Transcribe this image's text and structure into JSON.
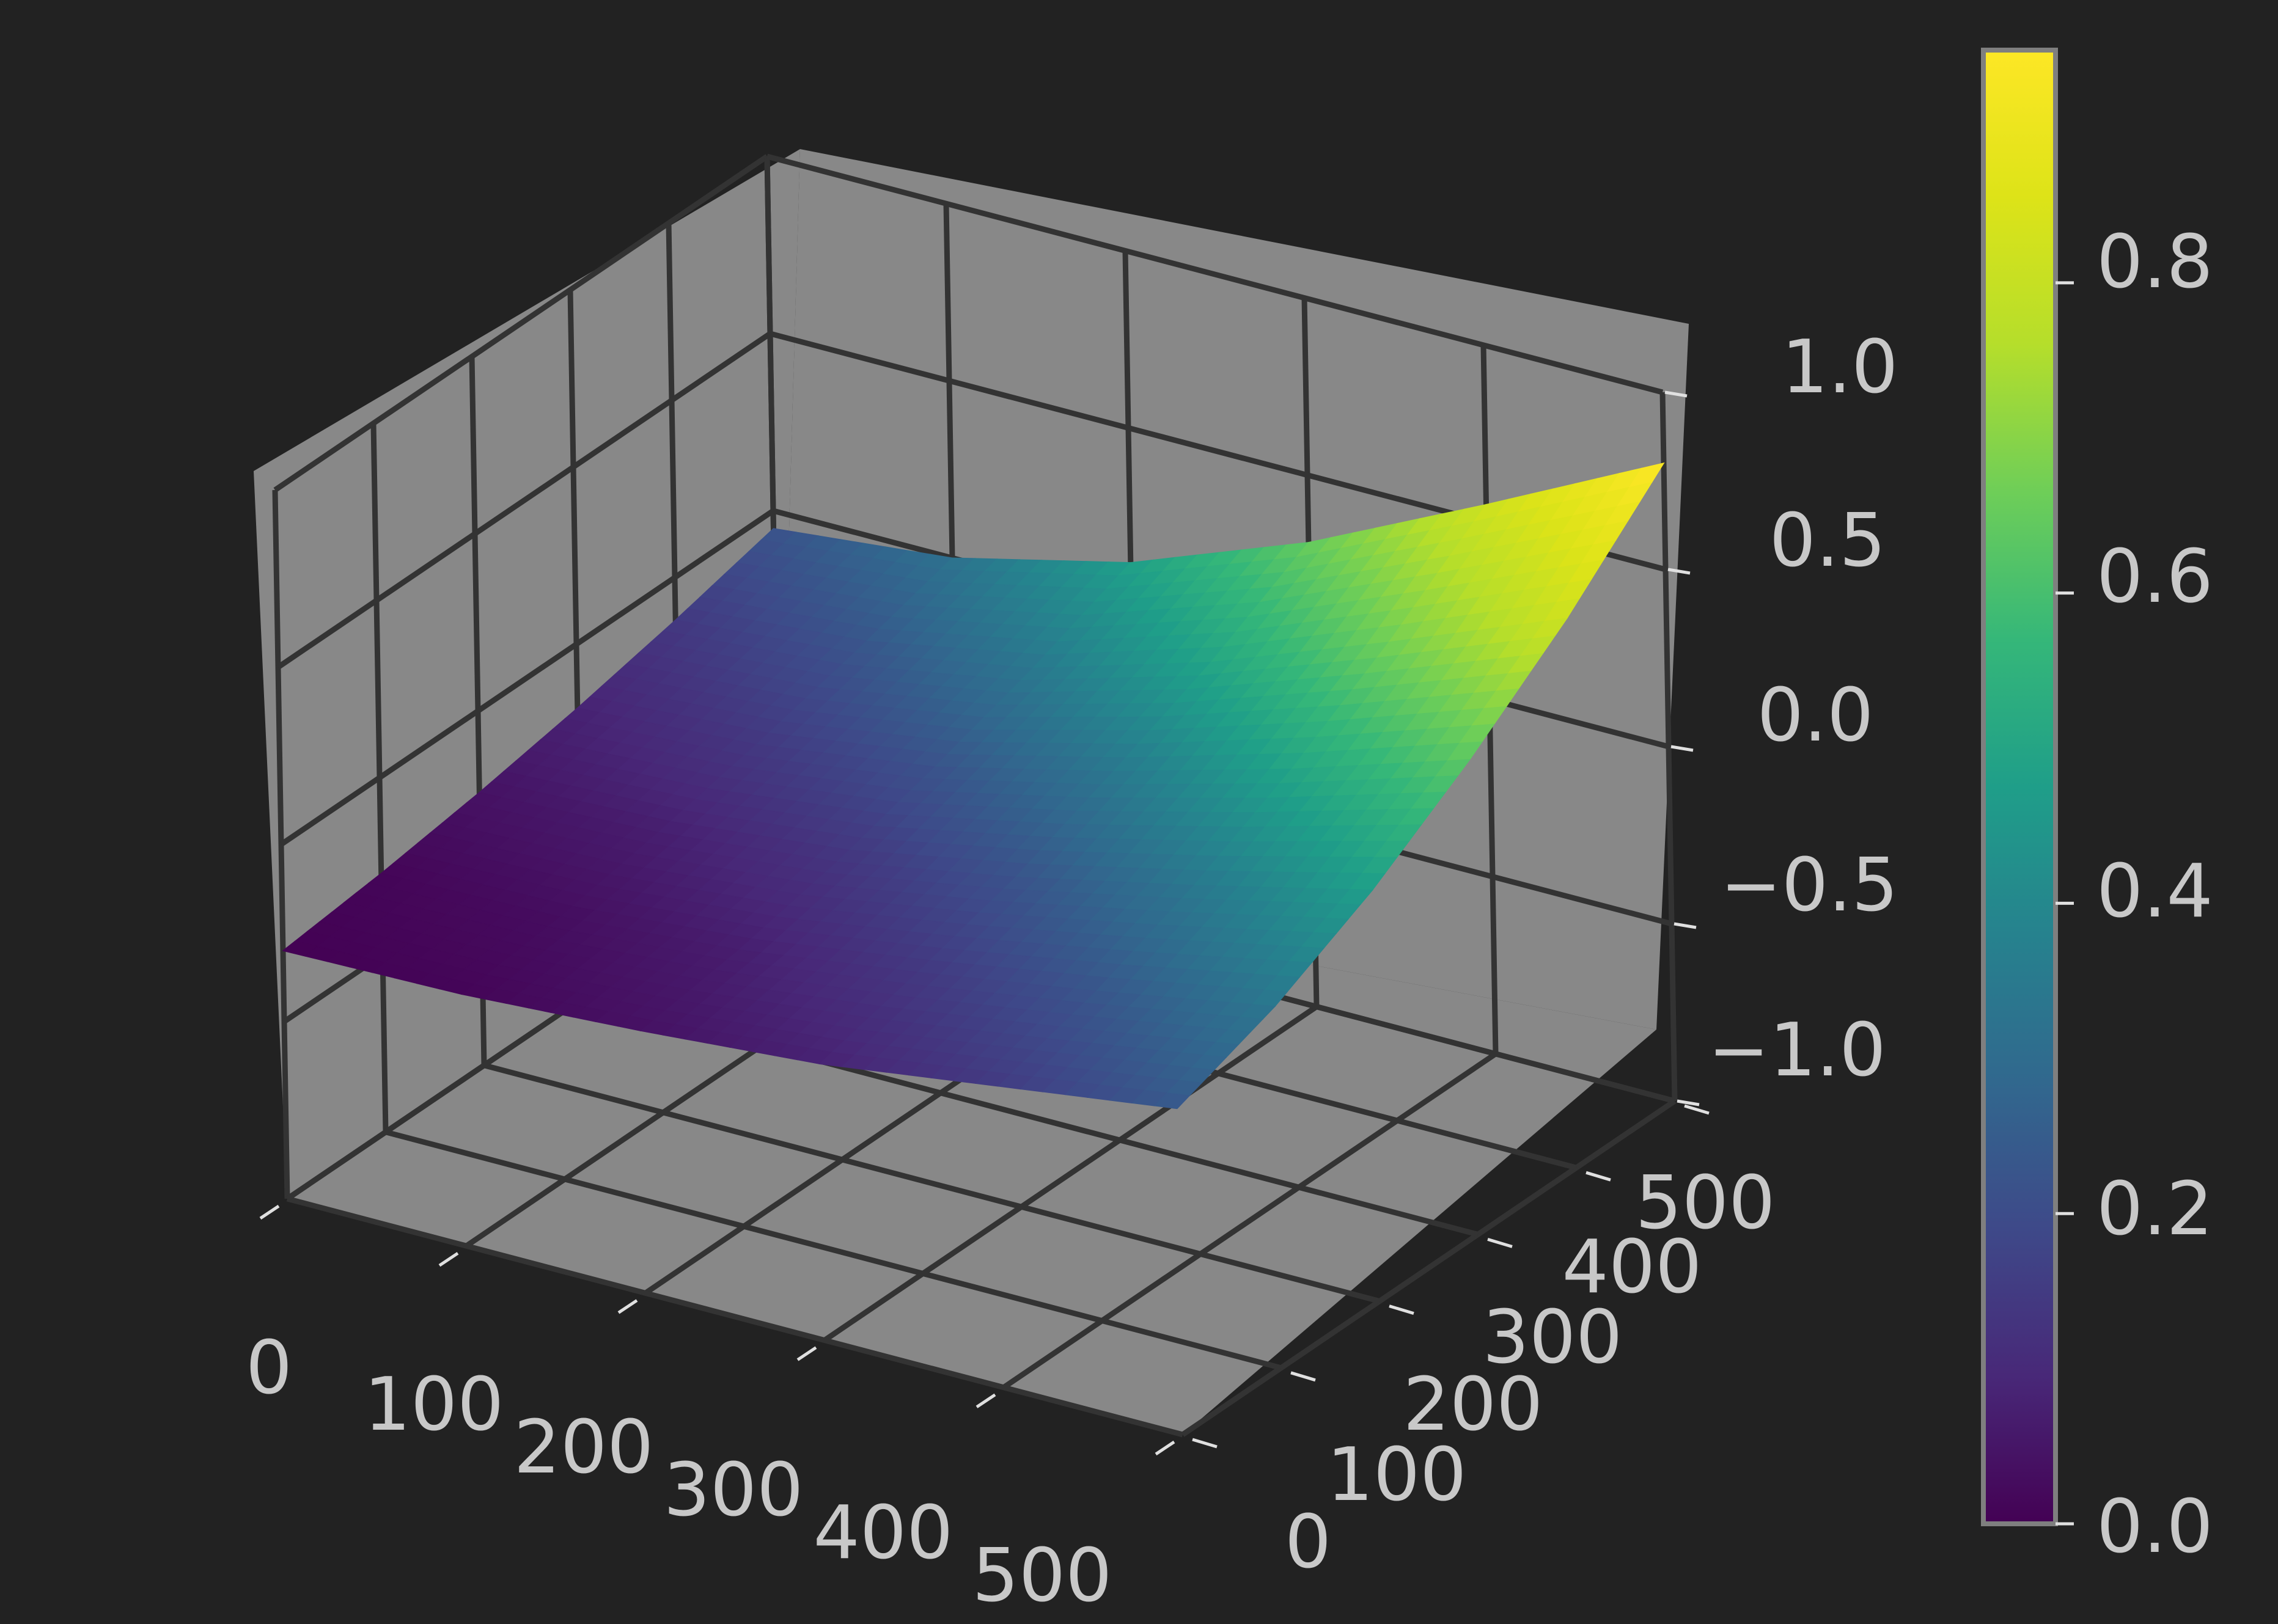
{
  "chart_data": {
    "type": "surface",
    "title": "",
    "xlabel": "",
    "ylabel": "",
    "zlabel": "",
    "colormap": "viridis",
    "x_ticks": [
      "0",
      "100",
      "200",
      "300",
      "400",
      "500"
    ],
    "y_ticks": [
      "0",
      "100",
      "200",
      "300",
      "400",
      "500"
    ],
    "z_ticks": [
      "−1.0",
      "−0.5",
      "0.0",
      "0.5",
      "1.0"
    ],
    "colorbar_ticks": [
      "0.0",
      "0.2",
      "0.4",
      "0.6",
      "0.8"
    ],
    "xlim": [
      0,
      500
    ],
    "ylim": [
      0,
      500
    ],
    "zlim": [
      -1.0,
      1.0
    ],
    "colorbar_range": [
      0.0,
      0.95
    ],
    "surface": {
      "x": [
        0,
        100,
        200,
        300,
        400,
        500
      ],
      "y": [
        0,
        100,
        200,
        300,
        400,
        500
      ],
      "z": [
        [
          -0.3,
          -0.29,
          -0.26,
          -0.22,
          -0.15,
          -0.08
        ],
        [
          -0.27,
          -0.26,
          -0.22,
          -0.15,
          -0.07,
          0.02
        ],
        [
          -0.23,
          -0.21,
          -0.16,
          -0.07,
          0.04,
          0.16
        ],
        [
          -0.18,
          -0.15,
          -0.08,
          0.04,
          0.18,
          0.34
        ],
        [
          -0.12,
          -0.08,
          0.01,
          0.16,
          0.35,
          0.55
        ],
        [
          -0.05,
          0.0,
          0.12,
          0.31,
          0.55,
          0.8
        ]
      ],
      "color_values": [
        [
          0.0,
          0.01,
          0.04,
          0.08,
          0.15,
          0.24
        ],
        [
          0.01,
          0.03,
          0.07,
          0.14,
          0.23,
          0.34
        ],
        [
          0.04,
          0.07,
          0.13,
          0.22,
          0.34,
          0.48
        ],
        [
          0.08,
          0.14,
          0.22,
          0.34,
          0.5,
          0.64
        ],
        [
          0.14,
          0.22,
          0.34,
          0.5,
          0.67,
          0.82
        ],
        [
          0.22,
          0.32,
          0.48,
          0.65,
          0.82,
          0.95
        ]
      ]
    },
    "grid": true,
    "colors": {
      "background": "#222222",
      "pane": "#888888",
      "grid": "#333333",
      "text": "#c8c8c8",
      "colorbar_frame": "#7f7f7f"
    }
  }
}
